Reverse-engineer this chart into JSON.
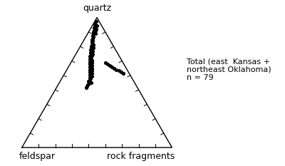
{
  "title": "quartz",
  "label_left": "feldspar",
  "label_right": "rock fragments",
  "annotation": "Total (east  Kansas +\nnortheast Oklahoma)\nn = 79",
  "background_color": "#ffffff",
  "triangle_color": "#000000",
  "point_color": "#000000",
  "point_size": 14,
  "n_ticks": 9,
  "points_ternary": [
    [
      0.97,
      0.02,
      0.01
    ],
    [
      0.95,
      0.04,
      0.01
    ],
    [
      0.94,
      0.03,
      0.03
    ],
    [
      0.93,
      0.05,
      0.02
    ],
    [
      0.92,
      0.06,
      0.02
    ],
    [
      0.91,
      0.05,
      0.04
    ],
    [
      0.9,
      0.07,
      0.03
    ],
    [
      0.9,
      0.06,
      0.04
    ],
    [
      0.89,
      0.08,
      0.03
    ],
    [
      0.88,
      0.08,
      0.04
    ],
    [
      0.88,
      0.07,
      0.05
    ],
    [
      0.87,
      0.09,
      0.04
    ],
    [
      0.86,
      0.1,
      0.04
    ],
    [
      0.85,
      0.1,
      0.05
    ],
    [
      0.84,
      0.11,
      0.05
    ],
    [
      0.83,
      0.12,
      0.05
    ],
    [
      0.82,
      0.12,
      0.06
    ],
    [
      0.81,
      0.13,
      0.06
    ],
    [
      0.8,
      0.13,
      0.07
    ],
    [
      0.79,
      0.14,
      0.07
    ],
    [
      0.79,
      0.13,
      0.08
    ],
    [
      0.78,
      0.15,
      0.07
    ],
    [
      0.77,
      0.15,
      0.08
    ],
    [
      0.77,
      0.14,
      0.09
    ],
    [
      0.76,
      0.16,
      0.08
    ],
    [
      0.76,
      0.15,
      0.09
    ],
    [
      0.75,
      0.17,
      0.08
    ],
    [
      0.74,
      0.17,
      0.09
    ],
    [
      0.74,
      0.16,
      0.1
    ],
    [
      0.73,
      0.18,
      0.09
    ],
    [
      0.72,
      0.18,
      0.1
    ],
    [
      0.72,
      0.17,
      0.11
    ],
    [
      0.71,
      0.19,
      0.1
    ],
    [
      0.71,
      0.18,
      0.11
    ],
    [
      0.7,
      0.2,
      0.1
    ],
    [
      0.7,
      0.19,
      0.11
    ],
    [
      0.69,
      0.2,
      0.11
    ],
    [
      0.68,
      0.21,
      0.11
    ],
    [
      0.68,
      0.2,
      0.12
    ],
    [
      0.67,
      0.21,
      0.12
    ],
    [
      0.67,
      0.2,
      0.13
    ],
    [
      0.66,
      0.22,
      0.12
    ],
    [
      0.65,
      0.22,
      0.13
    ],
    [
      0.65,
      0.21,
      0.14
    ],
    [
      0.64,
      0.23,
      0.13
    ],
    [
      0.63,
      0.23,
      0.14
    ],
    [
      0.63,
      0.22,
      0.15
    ],
    [
      0.62,
      0.24,
      0.14
    ],
    [
      0.61,
      0.24,
      0.15
    ],
    [
      0.61,
      0.23,
      0.16
    ],
    [
      0.6,
      0.25,
      0.15
    ],
    [
      0.6,
      0.24,
      0.16
    ],
    [
      0.59,
      0.25,
      0.16
    ],
    [
      0.59,
      0.24,
      0.17
    ],
    [
      0.58,
      0.26,
      0.16
    ],
    [
      0.57,
      0.26,
      0.17
    ],
    [
      0.57,
      0.25,
      0.18
    ],
    [
      0.56,
      0.27,
      0.17
    ],
    [
      0.55,
      0.27,
      0.18
    ],
    [
      0.55,
      0.26,
      0.19
    ],
    [
      0.54,
      0.28,
      0.18
    ],
    [
      0.53,
      0.28,
      0.19
    ],
    [
      0.52,
      0.29,
      0.19
    ],
    [
      0.51,
      0.3,
      0.19
    ],
    [
      0.5,
      0.3,
      0.2
    ],
    [
      0.5,
      0.29,
      0.21
    ],
    [
      0.49,
      0.31,
      0.2
    ],
    [
      0.48,
      0.32,
      0.2
    ],
    [
      0.47,
      0.33,
      0.2
    ],
    [
      0.46,
      0.34,
      0.2
    ],
    [
      0.65,
      0.12,
      0.23
    ],
    [
      0.64,
      0.11,
      0.25
    ],
    [
      0.63,
      0.1,
      0.27
    ],
    [
      0.62,
      0.09,
      0.29
    ],
    [
      0.61,
      0.08,
      0.31
    ],
    [
      0.6,
      0.07,
      0.33
    ],
    [
      0.59,
      0.06,
      0.35
    ],
    [
      0.58,
      0.05,
      0.37
    ],
    [
      0.57,
      0.04,
      0.39
    ]
  ]
}
